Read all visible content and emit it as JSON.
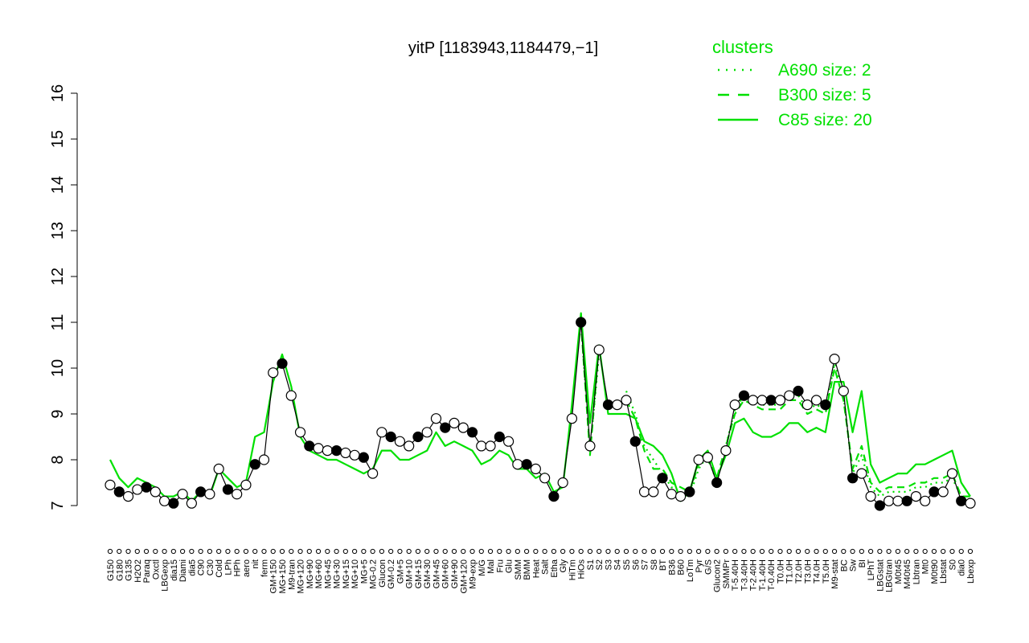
{
  "chart_data": {
    "type": "line",
    "title": "yitP [1183943,1184479,−1]",
    "xlabel": "",
    "ylabel": "",
    "ylim": [
      7,
      16
    ],
    "yticks": [
      7,
      8,
      9,
      10,
      11,
      12,
      13,
      14,
      15,
      16
    ],
    "grid": false,
    "legend": {
      "placement": "top-right",
      "title": "clusters",
      "entries": [
        {
          "label": "A690 size: 2",
          "style": "dotted"
        },
        {
          "label": "B300 size: 5",
          "style": "dashed"
        },
        {
          "label": "C85 size: 20",
          "style": "solid"
        }
      ]
    },
    "x_labels": [
      "G150",
      "G180",
      "G135",
      "H2O2",
      "Paraq",
      "Oxctl",
      "LBGexp",
      "dia15",
      "Diami",
      "dia5",
      "C90",
      "C30",
      "Cold",
      "LPh",
      "HPh",
      "aero",
      "nit",
      "ferm",
      "GM+150",
      "MG+150",
      "M9-tran",
      "MG+120",
      "MG+90",
      "MG+60",
      "MG+45",
      "MG+30",
      "MG+15",
      "MG+10",
      "MG+5",
      "MG-0.2",
      "Glucon",
      "GM-0.2",
      "GM+5",
      "GM+10",
      "GM+15",
      "GM+30",
      "GM+45",
      "GM+60",
      "GM+90",
      "GM+120",
      "M9-exp",
      "M/G",
      "Mal",
      "Fru",
      "Glu",
      "SMM",
      "BMM",
      "Heat",
      "Salt",
      "Etha",
      "Gly",
      "HiTm",
      "HiOs",
      "S1",
      "S2",
      "S3",
      "S4",
      "S5",
      "S6",
      "S7",
      "S8",
      "BT",
      "B36",
      "B60",
      "LoTm",
      "Pyr",
      "G/S",
      "Glucon2",
      "SMMPr",
      "T-5.40H",
      "T-3.40H",
      "T-2.40H",
      "T-1.40H",
      "T-0.40H",
      "T0.0H",
      "T1.0H",
      "T2.0H",
      "T3.0H",
      "T4.0H",
      "T5.0H",
      "M9-stat",
      "BC",
      "Sw",
      "BI",
      "LPhT",
      "LBGstat",
      "LBGtran",
      "M0t45",
      "M40t45",
      "Lbtran",
      "Mt0",
      "M0t90",
      "Lbstat",
      "S0",
      "dia0",
      "Lbexp"
    ],
    "series_values": [
      7.45,
      7.3,
      7.2,
      7.35,
      7.4,
      7.3,
      7.1,
      7.05,
      7.25,
      7.05,
      7.3,
      7.25,
      7.8,
      7.35,
      7.25,
      7.45,
      7.9,
      8.0,
      9.9,
      10.1,
      9.4,
      8.6,
      8.3,
      8.25,
      8.2,
      8.2,
      8.15,
      8.1,
      8.05,
      7.7,
      8.6,
      8.5,
      8.4,
      8.3,
      8.5,
      8.6,
      8.9,
      8.7,
      8.8,
      8.7,
      8.6,
      8.3,
      8.3,
      8.5,
      8.4,
      7.9,
      7.9,
      7.8,
      7.6,
      7.2,
      7.5,
      8.9,
      11.0,
      8.3,
      10.4,
      9.2,
      9.2,
      9.3,
      8.4,
      7.3,
      7.3,
      7.6,
      7.25,
      7.2,
      7.3,
      8.0,
      8.05,
      7.5,
      8.2,
      9.2,
      9.4,
      9.3,
      9.3,
      9.3,
      9.3,
      9.4,
      9.5,
      9.2,
      9.3,
      9.2,
      10.2,
      9.5,
      7.6,
      7.7,
      7.2,
      7.0,
      7.1,
      7.1,
      7.1,
      7.2,
      7.1,
      7.3,
      7.3,
      7.7,
      7.1,
      7.05
    ],
    "c85_values": [
      8.0,
      7.6,
      7.4,
      7.6,
      7.5,
      7.4,
      7.2,
      7.2,
      7.3,
      7.1,
      7.3,
      7.2,
      7.8,
      7.6,
      7.4,
      7.5,
      8.5,
      8.6,
      9.7,
      10.3,
      9.6,
      8.5,
      8.2,
      8.1,
      8.0,
      8.0,
      7.9,
      7.8,
      7.7,
      7.8,
      8.2,
      8.2,
      8.0,
      8.0,
      8.1,
      8.2,
      8.6,
      8.3,
      8.4,
      8.3,
      8.2,
      7.9,
      8.0,
      8.2,
      8.1,
      7.8,
      7.8,
      7.6,
      7.7,
      7.3,
      7.4,
      9.2,
      11.2,
      8.8,
      10.5,
      9.0,
      9.0,
      9.0,
      8.9,
      8.4,
      8.3,
      8.1,
      7.7,
      7.1,
      7.3,
      8.0,
      8.2,
      7.6,
      8.1,
      8.8,
      8.9,
      8.6,
      8.5,
      8.5,
      8.6,
      8.8,
      8.8,
      8.6,
      8.7,
      8.6,
      9.7,
      9.7,
      8.6,
      9.5,
      7.9,
      7.5,
      7.6,
      7.7,
      7.7,
      7.9,
      7.9,
      8.0,
      8.1,
      8.2,
      7.5,
      7.2
    ],
    "b300_values": [
      null,
      null,
      null,
      null,
      null,
      null,
      null,
      null,
      null,
      null,
      null,
      null,
      null,
      null,
      null,
      null,
      null,
      null,
      null,
      null,
      null,
      null,
      null,
      null,
      null,
      null,
      null,
      null,
      null,
      null,
      null,
      null,
      null,
      null,
      null,
      null,
      null,
      null,
      null,
      null,
      null,
      null,
      null,
      null,
      null,
      null,
      null,
      null,
      null,
      null,
      null,
      null,
      11.0,
      8.1,
      10.5,
      null,
      null,
      9.3,
      8.9,
      8.2,
      7.8,
      7.8,
      7.5,
      7.4,
      7.3,
      7.9,
      8.0,
      7.6,
      8.3,
      9.0,
      9.3,
      9.2,
      9.1,
      9.1,
      9.1,
      9.3,
      9.3,
      9.0,
      9.1,
      9.0,
      10.0,
      9.3,
      7.8,
      8.3,
      7.5,
      7.3,
      7.4,
      7.4,
      7.4,
      7.5,
      7.5,
      7.6,
      7.6,
      7.7,
      7.2,
      7.2
    ],
    "a690_values": [
      null,
      null,
      null,
      null,
      null,
      null,
      null,
      null,
      null,
      null,
      null,
      null,
      null,
      null,
      null,
      null,
      null,
      null,
      null,
      null,
      null,
      null,
      null,
      null,
      null,
      null,
      null,
      null,
      null,
      null,
      null,
      null,
      null,
      null,
      null,
      null,
      null,
      null,
      null,
      null,
      null,
      null,
      null,
      null,
      null,
      null,
      null,
      null,
      null,
      null,
      null,
      null,
      11.0,
      8.2,
      10.3,
      null,
      null,
      9.5,
      9.0,
      8.3,
      8.0,
      7.7,
      7.4,
      7.3,
      7.2,
      7.8,
      8.1,
      7.5,
      8.3,
      9.1,
      9.4,
      9.3,
      9.2,
      9.2,
      9.2,
      9.4,
      9.4,
      9.1,
      9.2,
      9.1,
      10.1,
      9.4,
      7.7,
      8.1,
      7.4,
      7.2,
      7.3,
      7.3,
      7.3,
      7.4,
      7.4,
      7.5,
      7.5,
      7.6,
      7.2,
      7.1
    ]
  }
}
